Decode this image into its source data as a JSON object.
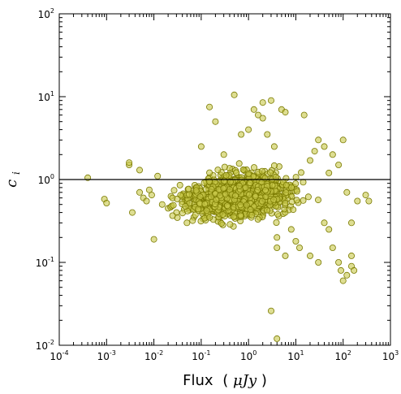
{
  "chart_data": {
    "type": "scatter",
    "title": "",
    "xlabel": {
      "text": "Flux",
      "unit": "μJy",
      "open": "(",
      "close": ")"
    },
    "ylabel": {
      "base": "c",
      "subscript": "i"
    },
    "xscale": "log",
    "yscale": "log",
    "xlim": [
      0.0001,
      1000
    ],
    "ylim": [
      0.01,
      100
    ],
    "x_ticks": [
      {
        "value": 0.0001,
        "base": "10",
        "exp": "-4"
      },
      {
        "value": 0.001,
        "base": "10",
        "exp": "-3"
      },
      {
        "value": 0.01,
        "base": "10",
        "exp": "-2"
      },
      {
        "value": 0.1,
        "base": "10",
        "exp": "-1"
      },
      {
        "value": 1,
        "base": "10",
        "exp": "0"
      },
      {
        "value": 10,
        "base": "10",
        "exp": "1"
      },
      {
        "value": 100,
        "base": "10",
        "exp": "2"
      },
      {
        "value": 1000,
        "base": "10",
        "exp": "3"
      }
    ],
    "y_ticks": [
      {
        "value": 0.01,
        "base": "10",
        "exp": "-2"
      },
      {
        "value": 0.1,
        "base": "10",
        "exp": "-1"
      },
      {
        "value": 1,
        "base": "10",
        "exp": "0"
      },
      {
        "value": 10,
        "base": "10",
        "exp": "1"
      },
      {
        "value": 100,
        "base": "10",
        "exp": "2"
      }
    ],
    "reference_line": {
      "y": 1.0,
      "color": "#000000"
    },
    "grid": false,
    "legend": "none",
    "marker": {
      "fill": "#c8c84a",
      "edge": "#7a7a00",
      "opacity": 0.6
    },
    "points": [
      [
        0.0004,
        1.05
      ],
      [
        0.0009,
        0.58
      ],
      [
        0.001,
        0.52
      ],
      [
        0.003,
        1.5
      ],
      [
        0.003,
        1.6
      ],
      [
        0.0035,
        0.4
      ],
      [
        0.005,
        1.3
      ],
      [
        0.005,
        0.7
      ],
      [
        0.006,
        0.6
      ],
      [
        0.007,
        0.55
      ],
      [
        0.008,
        0.75
      ],
      [
        0.009,
        0.65
      ],
      [
        0.01,
        0.19
      ],
      [
        0.012,
        1.1
      ],
      [
        0.015,
        0.5
      ],
      [
        0.02,
        0.45
      ],
      [
        0.03,
        0.4
      ],
      [
        0.05,
        0.3
      ],
      [
        0.07,
        0.35
      ],
      [
        0.1,
        2.5
      ],
      [
        0.15,
        7.5
      ],
      [
        0.2,
        5.0
      ],
      [
        0.3,
        2.0
      ],
      [
        0.5,
        10.5
      ],
      [
        0.7,
        3.5
      ],
      [
        1.0,
        4.0
      ],
      [
        1.3,
        7.0
      ],
      [
        1.6,
        6.0
      ],
      [
        2.0,
        5.5
      ],
      [
        2.0,
        8.5
      ],
      [
        2.5,
        3.5
      ],
      [
        3.0,
        9.0
      ],
      [
        3.5,
        2.5
      ],
      [
        4.0,
        0.2
      ],
      [
        5.0,
        7.0
      ],
      [
        6.0,
        6.5
      ],
      [
        4.0,
        0.15
      ],
      [
        6.0,
        0.12
      ],
      [
        8.0,
        0.25
      ],
      [
        10.0,
        0.18
      ],
      [
        12.0,
        0.15
      ],
      [
        15.0,
        6.0
      ],
      [
        20.0,
        0.12
      ],
      [
        30.0,
        0.1
      ],
      [
        40.0,
        0.3
      ],
      [
        50.0,
        0.25
      ],
      [
        60.0,
        0.15
      ],
      [
        80.0,
        0.1
      ],
      [
        90.0,
        0.08
      ],
      [
        100.0,
        0.06
      ],
      [
        120.0,
        0.07
      ],
      [
        150.0,
        0.09
      ],
      [
        170.0,
        0.08
      ],
      [
        200.0,
        0.55
      ],
      [
        300.0,
        0.65
      ],
      [
        350.0,
        0.55
      ],
      [
        30.0,
        3.0
      ],
      [
        40.0,
        2.5
      ],
      [
        60.0,
        2.0
      ],
      [
        100.0,
        3.0
      ],
      [
        150.0,
        0.3
      ],
      [
        80.0,
        1.5
      ],
      [
        120.0,
        0.7
      ],
      [
        20.0,
        1.7
      ],
      [
        25.0,
        2.2
      ],
      [
        50.0,
        1.2
      ],
      [
        150.0,
        0.12
      ],
      [
        3.0,
        0.026
      ],
      [
        4.0,
        0.012
      ]
    ]
  }
}
